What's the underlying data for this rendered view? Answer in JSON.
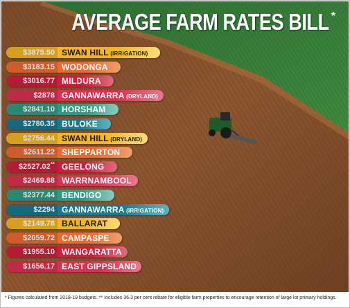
{
  "title": "AVERAGE FARM RATES BILL",
  "title_marker": "*",
  "footnote": "* Figures calculated from 2018-19 budgets.  ** Includes 36.3 per cent rebate for eligible farm properties to encourage retention of large lot primary holdings.",
  "chart_data": {
    "type": "bar",
    "orientation": "horizontal",
    "title": "AVERAGE FARM RATES BILL",
    "categories": [
      "SWAN HILL",
      "WODONGA",
      "MILDURA",
      "GANNAWARRA",
      "HORSHAM",
      "BULOKE",
      "SWAN HILL",
      "SHEPPARTON",
      "GEELONG",
      "WARRNAMBOOL",
      "BENDIGO",
      "GANNAWARRA",
      "BALLARAT",
      "CAMPASPE",
      "WANGARATTA",
      "EAST GIPPSLAND"
    ],
    "qualifiers": [
      "(IRRIGATION)",
      "",
      "",
      "(DRYLAND)",
      "",
      "",
      "(DRYLAND)",
      "",
      "",
      "",
      "",
      "(IRRIGATION)",
      "",
      "",
      "",
      ""
    ],
    "value_labels": [
      "$3875.50",
      "$3183.15",
      "$3016.77",
      "$2878",
      "$2841.10",
      "$2780.35",
      "$2756.44",
      "$2611.22",
      "$2527.02",
      "$2469.88",
      "$2377.44",
      "$2294",
      "$2149.78",
      "$2059.72",
      "$1955.10",
      "$1656.17"
    ],
    "value_markers": [
      "",
      "",
      "",
      "",
      "",
      "",
      "",
      "",
      "**",
      "",
      "",
      "",
      "",
      "",
      "",
      ""
    ],
    "values": [
      3875.5,
      3183.15,
      3016.77,
      2878,
      2841.1,
      2780.35,
      2756.44,
      2611.22,
      2527.02,
      2469.88,
      2377.44,
      2294,
      2149.78,
      2059.72,
      1955.1,
      1656.17
    ],
    "colors": [
      "#f2b620",
      "#ea6a30",
      "#cc1f3c",
      "#d9314f",
      "#2f9a86",
      "#17798c",
      "#f2b620",
      "#ea6a30",
      "#cc1f3c",
      "#d9314f",
      "#2f9a86",
      "#17798c",
      "#f2b620",
      "#ea6a30",
      "#cc1f3c",
      "#d9314f"
    ],
    "label_colors": [
      "#1a1a1a",
      "#ffffff",
      "#ffffff",
      "#ffffff",
      "#ffffff",
      "#ffffff",
      "#1a1a1a",
      "#ffffff",
      "#ffffff",
      "#ffffff",
      "#ffffff",
      "#ffffff",
      "#1a1a1a",
      "#ffffff",
      "#ffffff",
      "#ffffff"
    ],
    "pill_end_colors": [
      "#f7dc7a",
      "#f19f6e",
      "#e06a7c",
      "#e8788f",
      "#8ccbbf",
      "#5fb3c2",
      "#f7dc7a",
      "#f19f6e",
      "#e06a7c",
      "#e8788f",
      "#8ccbbf",
      "#5fb3c2",
      "#f7dc7a",
      "#f19f6e",
      "#e06a7c",
      "#e8788f"
    ],
    "xlabel": "",
    "ylabel": ""
  }
}
